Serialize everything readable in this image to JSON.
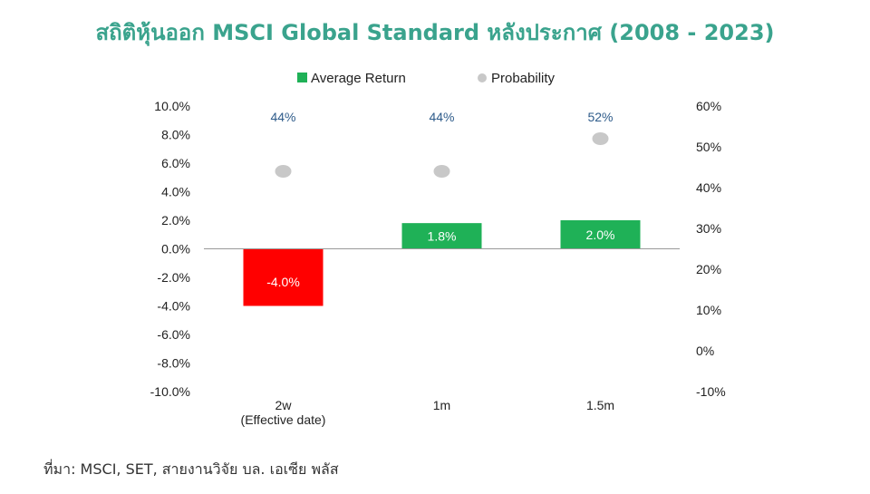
{
  "title": "สถิติหุ้นออก MSCI Global Standard หลังประกาศ (2008 - 2023)",
  "source": "ที่มา: MSCI, SET, สายงานวิจัย บล. เอเซีย พลัส",
  "chart_data": {
    "type": "bar",
    "categories": [
      "2w\n(Effective date)",
      "1m",
      "1.5m"
    ],
    "series": [
      {
        "name": "Average Return",
        "type": "bar",
        "axis": "left",
        "values": [
          -4.0,
          1.8,
          2.0
        ],
        "labels": [
          "-4.0%",
          "1.8%",
          "2.0%"
        ],
        "color_positive": "#1fb157",
        "color_negative": "#ff0000"
      },
      {
        "name": "Probability",
        "type": "scatter",
        "axis": "right",
        "values": [
          44,
          44,
          52
        ],
        "labels": [
          "44%",
          "44%",
          "52%"
        ],
        "color": "#c8c8c8",
        "label_color": "#2e5b8a"
      }
    ],
    "y_left": {
      "range": [
        -10,
        10
      ],
      "ticks": [
        "10.0%",
        "8.0%",
        "6.0%",
        "4.0%",
        "2.0%",
        "0.0%",
        "-2.0%",
        "-4.0%",
        "-6.0%",
        "-8.0%",
        "-10.0%"
      ]
    },
    "y_right": {
      "range": [
        -10,
        60
      ],
      "ticks": [
        "60%",
        "50%",
        "40%",
        "30%",
        "20%",
        "10%",
        "0%",
        "-10%"
      ]
    },
    "legend_placement": "top",
    "grid": false
  }
}
